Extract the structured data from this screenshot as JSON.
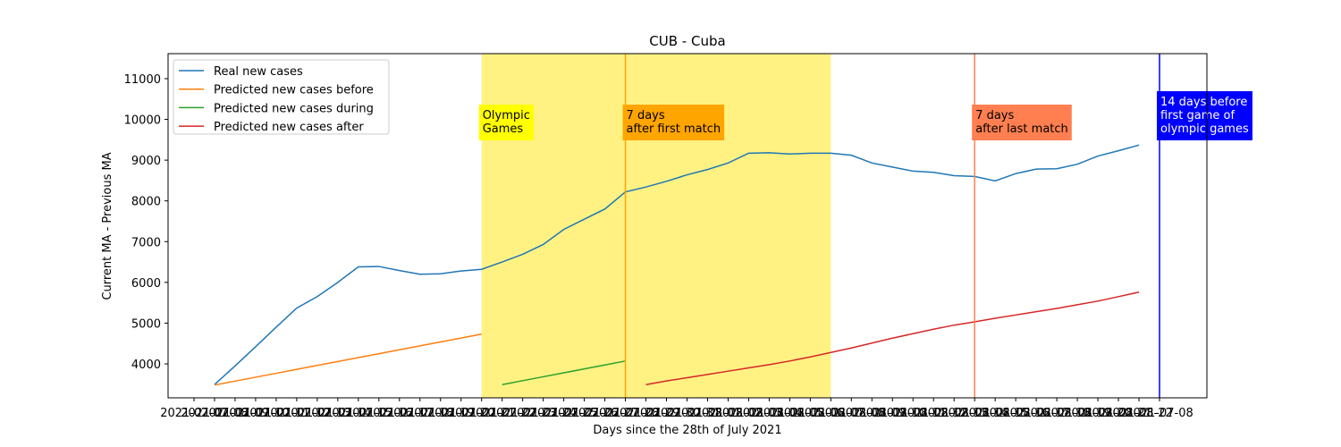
{
  "chart_data": {
    "type": "line",
    "title": "CUB - Cuba",
    "xlabel": "Days since the 28th of July 2021",
    "ylabel": "Current MA - Previous MA",
    "categories": [
      "2021-07-07",
      "2021-07-08",
      "2021-07-09",
      "2021-07-10",
      "2021-07-11",
      "2021-07-12",
      "2021-07-13",
      "2021-07-14",
      "2021-07-15",
      "2021-07-16",
      "2021-07-17",
      "2021-07-18",
      "2021-07-19",
      "2021-07-20",
      "2021-07-21",
      "2021-07-22",
      "2021-07-23",
      "2021-07-24",
      "2021-07-25",
      "2021-07-26",
      "2021-07-27",
      "2021-07-28",
      "2021-07-29",
      "2021-07-30",
      "2021-07-31",
      "2021-08-01",
      "2021-08-02",
      "2021-08-03",
      "2021-08-04",
      "2021-08-05",
      "2021-08-06",
      "2021-08-07",
      "2021-08-08",
      "2021-08-09",
      "2021-08-10",
      "2021-08-11",
      "2021-08-12",
      "2021-08-13",
      "2021-08-14",
      "2021-08-15",
      "2021-08-16",
      "2021-08-17",
      "2021-08-18",
      "2021-08-19",
      "2021-08-20",
      "2021-08-21",
      "2021-08-22",
      "2021-07-08"
    ],
    "series": [
      {
        "name": "Real new cases",
        "color": "#1f77b4",
        "values": [
          null,
          3490,
          3950,
          4420,
          4900,
          5370,
          5650,
          6000,
          6380,
          6390,
          6290,
          6200,
          6210,
          6280,
          6320,
          6500,
          6690,
          6930,
          7300,
          7550,
          7800,
          8220,
          8340,
          8480,
          8640,
          8770,
          8930,
          9170,
          9180,
          9150,
          9170,
          9170,
          9120,
          8930,
          8830,
          8730,
          8700,
          8620,
          8600,
          8490,
          8670,
          8780,
          8790,
          8900,
          9100,
          9230,
          9370,
          null
        ]
      },
      {
        "name": "Predicted new cases before",
        "color": "#ff7f0e",
        "values": [
          null,
          3480,
          3576,
          3672,
          3768,
          3865,
          3961,
          4057,
          4153,
          4249,
          4345,
          4441,
          4538,
          4634,
          4730,
          null,
          null,
          null,
          null,
          null,
          null,
          null,
          null,
          null,
          null,
          null,
          null,
          null,
          null,
          null,
          null,
          null,
          null,
          null,
          null,
          null,
          null,
          null,
          null,
          null,
          null,
          null,
          null,
          null,
          null,
          null,
          null,
          null
        ]
      },
      {
        "name": "Predicted new cases during",
        "color": "#2ca02c",
        "values": [
          null,
          null,
          null,
          null,
          null,
          null,
          null,
          null,
          null,
          null,
          null,
          null,
          null,
          null,
          null,
          3490,
          3587,
          3683,
          3780,
          3877,
          3973,
          4070,
          null,
          null,
          null,
          null,
          null,
          null,
          null,
          null,
          null,
          null,
          null,
          null,
          null,
          null,
          null,
          null,
          null,
          null,
          null,
          null,
          null,
          null,
          null,
          null,
          null,
          null
        ]
      },
      {
        "name": "Predicted new cases after",
        "color": "#d62728",
        "values": [
          null,
          null,
          null,
          null,
          null,
          null,
          null,
          null,
          null,
          null,
          null,
          null,
          null,
          null,
          null,
          null,
          null,
          null,
          null,
          null,
          null,
          null,
          3490,
          3580,
          3660,
          3740,
          3820,
          3900,
          3980,
          4070,
          4170,
          4280,
          4390,
          4510,
          4630,
          4740,
          4850,
          4950,
          5030,
          5120,
          5200,
          5280,
          5360,
          5450,
          5540,
          5650,
          5760,
          null
        ]
      }
    ],
    "ylim": [
      3166,
      11614
    ],
    "yticks": [
      4000,
      5000,
      6000,
      7000,
      8000,
      9000,
      10000,
      11000
    ],
    "legend": "upper left",
    "span": {
      "from": 14,
      "to": 31,
      "color": "#fff176"
    },
    "vlines": [
      {
        "x": 21,
        "color": "#ffa500"
      },
      {
        "x": 38,
        "color": "#ff7f50"
      },
      {
        "x": 47,
        "color": "#0000ff"
      }
    ],
    "annotations": [
      {
        "x": 14,
        "text": "Olympic\nGames",
        "color": "#ffff00",
        "text_color": "#000000"
      },
      {
        "x": 21,
        "text": "7 days\nafter first match",
        "color": "#ffa500",
        "text_color": "#000000"
      },
      {
        "x": 38,
        "text": "7 days\nafter last match",
        "color": "#ff7f50",
        "text_color": "#000000"
      },
      {
        "x": 47,
        "text": "14 days before\nfirst game of\nolympic games",
        "color": "#0000ff",
        "text_color": "#ffffff"
      }
    ]
  }
}
